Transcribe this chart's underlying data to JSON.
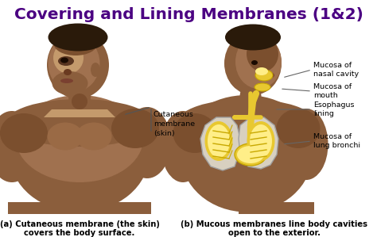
{
  "title": "Covering and Lining Membranes (1&2)",
  "title_color": "#4B0082",
  "title_fontsize": 14.5,
  "bg_color": "#FFFFFF",
  "skin_dark": "#7B4F2E",
  "skin_mid": "#8B5E3C",
  "skin_light": "#A0714F",
  "skin_highlight": "#C49A6C",
  "yellow_anatomy": "#E8C830",
  "yellow_dark": "#C8A800",
  "gray_anatomy": "#A0A0A0",
  "caption_a_bold": "(a) Cutaneous membrane (the skin)",
  "caption_a_normal": "covers the body surface.",
  "caption_b_bold": "(b) Mucous membranes line body cavities",
  "caption_b_normal": "open to the exterior.",
  "label_cutaneous": "Cutaneous\nmembrane\n(skin)",
  "label_nasal": "Mucosa of\nnasal cavity",
  "label_mouth": "Mucosa of\nmouth",
  "label_esophagus": "Esophagus\nlining",
  "label_lung": "Mucosa of\nlung bronchi",
  "figsize": [
    4.74,
    2.99
  ],
  "dpi": 100
}
